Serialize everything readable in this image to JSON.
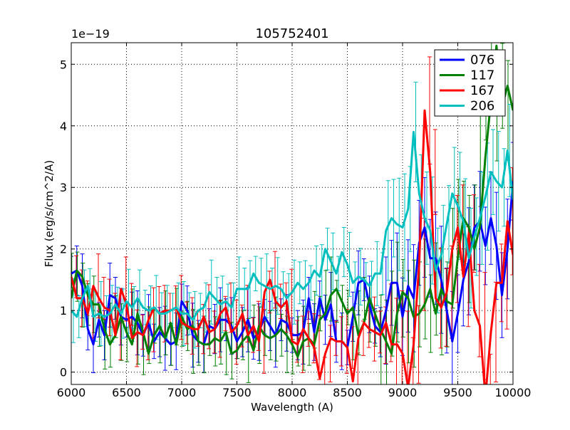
{
  "chart_data": {
    "type": "line",
    "title": "105752401",
    "xlabel": "Wavelength (A)",
    "ylabel": "Flux (erg/s/cm^2/A)",
    "offset_label": "1e−19",
    "xlim": [
      6000,
      10000
    ],
    "ylim": [
      -0.2,
      5.35
    ],
    "xticks": [
      6000,
      6500,
      7000,
      7500,
      8000,
      8500,
      9000,
      9500,
      10000
    ],
    "yticks": [
      0,
      1,
      2,
      3,
      4,
      5
    ],
    "grid": true,
    "legend_position": "top-right",
    "series": [
      {
        "name": "076",
        "color": "#0000ff",
        "x": [
          6000,
          6050,
          6100,
          6150,
          6200,
          6250,
          6300,
          6350,
          6400,
          6450,
          6500,
          6550,
          6600,
          6650,
          6700,
          6750,
          6800,
          6850,
          6900,
          6950,
          7000,
          7050,
          7100,
          7150,
          7200,
          7250,
          7300,
          7350,
          7400,
          7450,
          7500,
          7550,
          7600,
          7650,
          7700,
          7750,
          7800,
          7850,
          7900,
          7950,
          8000,
          8050,
          8100,
          8150,
          8200,
          8250,
          8300,
          8350,
          8400,
          8450,
          8500,
          8550,
          8600,
          8650,
          8700,
          8750,
          8800,
          8850,
          8900,
          8950,
          9000,
          9050,
          9100,
          9150,
          9200,
          9250,
          9300,
          9350,
          9400,
          9450,
          9500,
          9550,
          9600,
          9650,
          9700,
          9750,
          9800,
          9850,
          9900,
          9950,
          10000
        ],
        "y": [
          1.6,
          1.65,
          1.4,
          0.7,
          0.45,
          0.85,
          0.6,
          1.25,
          1.2,
          0.9,
          0.85,
          0.9,
          0.8,
          0.6,
          0.8,
          0.5,
          0.65,
          0.55,
          0.45,
          0.5,
          1.15,
          1.0,
          0.6,
          0.5,
          0.45,
          0.75,
          0.7,
          0.85,
          0.85,
          0.75,
          0.5,
          0.65,
          0.85,
          0.55,
          0.65,
          0.9,
          0.75,
          0.6,
          0.85,
          0.8,
          0.6,
          0.6,
          0.65,
          1.2,
          0.65,
          1.2,
          0.85,
          1.1,
          0.5,
          0.5,
          0.4,
          0.9,
          1.45,
          1.5,
          1.1,
          0.75,
          0.65,
          1.0,
          1.45,
          1.45,
          0.9,
          1.4,
          1.2,
          2.1,
          2.35,
          1.85,
          1.85,
          1.5,
          1.0,
          0.5,
          0.95,
          1.5,
          1.8,
          2.35,
          2.45,
          2.05,
          2.5,
          2.05,
          1.25,
          2.0,
          3.1
        ]
      },
      {
        "name": "117",
        "color": "#008000",
        "x": [
          6000,
          6050,
          6100,
          6150,
          6200,
          6250,
          6300,
          6350,
          6400,
          6450,
          6500,
          6550,
          6600,
          6650,
          6700,
          6750,
          6800,
          6850,
          6900,
          6950,
          7000,
          7050,
          7100,
          7150,
          7200,
          7250,
          7300,
          7350,
          7400,
          7450,
          7500,
          7550,
          7600,
          7650,
          7700,
          7750,
          7800,
          7850,
          7900,
          7950,
          8000,
          8050,
          8100,
          8150,
          8200,
          8250,
          8300,
          8350,
          8400,
          8450,
          8500,
          8550,
          8600,
          8650,
          8700,
          8750,
          8800,
          8850,
          8900,
          8950,
          9000,
          9050,
          9100,
          9150,
          9200,
          9250,
          9300,
          9350,
          9400,
          9450,
          9500,
          9550,
          9600,
          9650,
          9700,
          9750,
          9800,
          9850,
          9900,
          9950,
          10000
        ],
        "y": [
          1.2,
          1.65,
          1.55,
          1.25,
          1.1,
          1.1,
          0.7,
          0.45,
          0.6,
          0.9,
          0.65,
          0.45,
          0.95,
          0.65,
          0.3,
          0.6,
          0.75,
          0.55,
          0.8,
          0.45,
          0.9,
          0.7,
          0.75,
          0.5,
          0.45,
          0.45,
          0.55,
          0.5,
          0.65,
          0.3,
          0.35,
          0.5,
          0.6,
          0.35,
          0.75,
          0.6,
          0.55,
          0.6,
          0.7,
          0.6,
          0.45,
          0.25,
          0.5,
          0.55,
          0.45,
          0.85,
          0.95,
          1.25,
          1.35,
          1.15,
          0.95,
          1.05,
          0.6,
          0.8,
          1.2,
          0.95,
          0.7,
          0.5,
          0.3,
          0.95,
          1.3,
          1.2,
          0.9,
          0.95,
          1.1,
          1.35,
          0.95,
          1.35,
          1.15,
          1.1,
          1.85,
          2.5,
          2.35,
          2.0,
          2.35,
          3.5,
          4.4,
          5.3,
          4.3,
          4.65,
          4.25
        ]
      },
      {
        "name": "167",
        "color": "#ff0000",
        "x": [
          6000,
          6050,
          6100,
          6150,
          6200,
          6250,
          6300,
          6350,
          6400,
          6450,
          6500,
          6550,
          6600,
          6650,
          6700,
          6750,
          6800,
          6850,
          6900,
          6950,
          7000,
          7050,
          7100,
          7150,
          7200,
          7250,
          7300,
          7350,
          7400,
          7450,
          7500,
          7550,
          7600,
          7650,
          7700,
          7750,
          7800,
          7850,
          7900,
          7950,
          8000,
          8050,
          8100,
          8150,
          8200,
          8250,
          8300,
          8350,
          8400,
          8450,
          8500,
          8550,
          8600,
          8650,
          8700,
          8750,
          8800,
          8850,
          8900,
          8950,
          9000,
          9050,
          9100,
          9150,
          9200,
          9250,
          9300,
          9350,
          9400,
          9450,
          9500,
          9550,
          9600,
          9650,
          9700,
          9750,
          9800,
          9850,
          9900,
          9950,
          10000
        ],
        "y": [
          1.55,
          1.2,
          1.2,
          0.95,
          1.4,
          1.2,
          1.05,
          1.0,
          0.6,
          1.35,
          1.1,
          0.55,
          0.65,
          0.6,
          0.85,
          1.05,
          0.95,
          1.0,
          1.0,
          1.05,
          0.8,
          0.75,
          0.7,
          0.7,
          0.9,
          0.65,
          0.7,
          0.95,
          1.05,
          0.65,
          0.75,
          0.95,
          0.6,
          0.75,
          0.5,
          1.3,
          1.5,
          1.15,
          1.05,
          1.15,
          0.5,
          0.45,
          0.7,
          0.55,
          0.4,
          -0.1,
          0.3,
          0.55,
          0.5,
          0.5,
          0.4,
          -0.15,
          0.55,
          0.8,
          0.7,
          0.65,
          0.6,
          0.8,
          0.45,
          0.45,
          0.3,
          -0.25,
          0.45,
          1.75,
          4.25,
          3.25,
          1.2,
          1.05,
          1.3,
          2.0,
          2.35,
          1.55,
          2.25,
          1.0,
          0.75,
          -0.4,
          0.65,
          1.45,
          1.45,
          2.45,
          1.9
        ]
      },
      {
        "name": "206",
        "color": "#00bfbf",
        "x": [
          6000,
          6050,
          6100,
          6150,
          6200,
          6250,
          6300,
          6350,
          6400,
          6450,
          6500,
          6550,
          6600,
          6650,
          6700,
          6750,
          6800,
          6850,
          6900,
          6950,
          7000,
          7050,
          7100,
          7150,
          7200,
          7250,
          7300,
          7350,
          7400,
          7450,
          7500,
          7550,
          7600,
          7650,
          7700,
          7750,
          7800,
          7850,
          7900,
          7950,
          8000,
          8050,
          8100,
          8150,
          8200,
          8250,
          8300,
          8350,
          8400,
          8450,
          8500,
          8550,
          8600,
          8650,
          8700,
          8750,
          8800,
          8850,
          8900,
          8950,
          9000,
          9050,
          9100,
          9150,
          9200,
          9250,
          9300,
          9350,
          9400,
          9450,
          9500,
          9550,
          9600,
          9650,
          9700,
          9750,
          9800,
          9850,
          9900,
          9950,
          10000
        ],
        "y": [
          1.0,
          0.9,
          1.2,
          1.4,
          0.9,
          0.95,
          0.9,
          0.95,
          1.1,
          0.95,
          1.15,
          1.05,
          1.2,
          1.05,
          1.0,
          1.05,
          0.95,
          0.95,
          1.0,
          1.05,
          0.95,
          0.95,
          0.85,
          1.0,
          1.05,
          1.3,
          1.2,
          1.1,
          1.15,
          1.05,
          1.35,
          1.35,
          1.35,
          1.6,
          1.45,
          1.4,
          1.35,
          1.4,
          1.35,
          1.2,
          1.3,
          1.45,
          1.35,
          1.45,
          1.65,
          1.55,
          2.0,
          1.8,
          1.6,
          1.95,
          1.75,
          1.45,
          1.55,
          1.5,
          1.4,
          1.6,
          1.6,
          2.3,
          2.5,
          2.4,
          2.35,
          2.65,
          3.9,
          2.9,
          2.5,
          2.3,
          1.65,
          1.9,
          2.4,
          2.9,
          2.7,
          2.45,
          1.85,
          2.2,
          2.5,
          2.85,
          3.25,
          3.1,
          3.0,
          3.6,
          2.8
        ]
      }
    ]
  }
}
